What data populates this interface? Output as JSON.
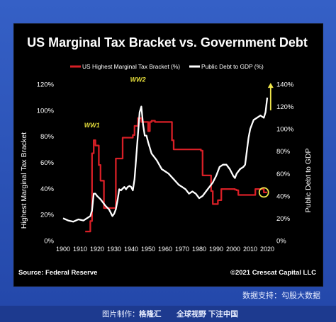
{
  "colors": {
    "background": "#000000",
    "tax_series": "#d81f26",
    "debt_series": "#ffffff",
    "annotation_text": "#e3dc3a",
    "highlight_circle": "#f2e84b",
    "axis_text": "#ffffff",
    "frame": "#2a4fb5"
  },
  "footer": {
    "data_credit": "数据支持：勾股大数据",
    "made_by": "图片制作：",
    "brand": "格隆汇",
    "slogan": "全球视野 下注中国"
  },
  "chart_data": {
    "type": "line",
    "title": "US Marginal Tax Bracket vs. Government Debt",
    "source": "Source: Federal Reserve",
    "copyright": "©2021 Crescat Capital LLC",
    "xlabel": "",
    "ylabel_left": "Highest Marginal Tax Bracket",
    "ylabel_right": "Public Debt to GDP",
    "xlim": [
      1900,
      2020
    ],
    "ylim_left": [
      0,
      120
    ],
    "ylim_right": [
      0,
      140
    ],
    "x_ticks": [
      "1900",
      "1910",
      "1920",
      "1930",
      "1940",
      "1950",
      "1960",
      "1970",
      "1980",
      "1990",
      "2000",
      "2010",
      "2020"
    ],
    "y_ticks_left": [
      "0%",
      "20%",
      "40%",
      "60%",
      "80%",
      "100%",
      "120%"
    ],
    "y_ticks_right": [
      "0%",
      "20%",
      "40%",
      "60%",
      "80%",
      "100%",
      "120%",
      "140%"
    ],
    "grid": false,
    "legend_placement": "top",
    "series": [
      {
        "name": "US Highest Marginal Tax Bracket (%)",
        "axis": "left",
        "color": "#d81f26",
        "x": [
          1913,
          1916,
          1916,
          1917,
          1917,
          1918,
          1918,
          1919,
          1919,
          1921,
          1921,
          1922,
          1922,
          1924,
          1924,
          1925,
          1925,
          1931,
          1931,
          1932,
          1932,
          1935,
          1935,
          1936,
          1936,
          1941,
          1941,
          1942,
          1942,
          1944,
          1944,
          1946,
          1946,
          1950,
          1950,
          1951,
          1951,
          1952,
          1952,
          1954,
          1954,
          1964,
          1964,
          1965,
          1965,
          1981,
          1981,
          1982,
          1982,
          1987,
          1987,
          1988,
          1988,
          1991,
          1991,
          1993,
          1993,
          2001,
          2001,
          2002,
          2002,
          2003,
          2003,
          2013,
          2013,
          2018,
          2018,
          2020
        ],
        "y": [
          7,
          7,
          15,
          15,
          67,
          67,
          77,
          77,
          73,
          73,
          58,
          58,
          46,
          46,
          25,
          25,
          25,
          25,
          63,
          63,
          63,
          63,
          79,
          79,
          79,
          79,
          81,
          81,
          88,
          88,
          94,
          94,
          91,
          91,
          84,
          84,
          91,
          91,
          92,
          92,
          91,
          91,
          77,
          77,
          70,
          70,
          69,
          69,
          50,
          50,
          38,
          38,
          28,
          28,
          31,
          31,
          39.6,
          39.6,
          39.1,
          39.1,
          38.6,
          38.6,
          35,
          35,
          39.6,
          39.6,
          37,
          37
        ]
      },
      {
        "name": "Public Debt to GDP (%)",
        "axis": "right",
        "color": "#ffffff",
        "x": [
          1900,
          1903,
          1906,
          1909,
          1912,
          1914,
          1916,
          1917,
          1918,
          1919,
          1920,
          1922,
          1925,
          1927,
          1929,
          1930,
          1931,
          1932,
          1933,
          1934,
          1936,
          1937,
          1938,
          1939,
          1940,
          1941,
          1942,
          1943,
          1944,
          1945,
          1946,
          1947,
          1948,
          1949,
          1950,
          1952,
          1955,
          1958,
          1960,
          1962,
          1965,
          1968,
          1970,
          1972,
          1974,
          1976,
          1978,
          1980,
          1982,
          1984,
          1986,
          1988,
          1990,
          1992,
          1994,
          1996,
          1998,
          2000,
          2001,
          2002,
          2004,
          2006,
          2007,
          2008,
          2009,
          2010,
          2012,
          2014,
          2016,
          2018,
          2019,
          2020
        ],
        "y": [
          20,
          18,
          17,
          19,
          18,
          20,
          22,
          27,
          42,
          42,
          40,
          37,
          31,
          28,
          22,
          24,
          28,
          36,
          46,
          45,
          48,
          46,
          48,
          49,
          48,
          45,
          55,
          75,
          95,
          115,
          120,
          104,
          94,
          94,
          88,
          78,
          72,
          64,
          62,
          60,
          55,
          50,
          48,
          46,
          42,
          44,
          42,
          38,
          40,
          44,
          48,
          52,
          58,
          66,
          68,
          68,
          64,
          58,
          56,
          60,
          64,
          66,
          68,
          80,
          92,
          100,
          108,
          110,
          112,
          110,
          115,
          128
        ]
      }
    ],
    "annotations": [
      {
        "text": "WW1",
        "x": 1917,
        "y": 87
      },
      {
        "text": "WW2",
        "x": 1944,
        "y": 122
      }
    ],
    "highlight": {
      "x": 2018,
      "y": 37,
      "axis": "left"
    },
    "arrow": {
      "x": 2022,
      "y_from": 100,
      "y_to": 121,
      "axis": "left"
    }
  }
}
